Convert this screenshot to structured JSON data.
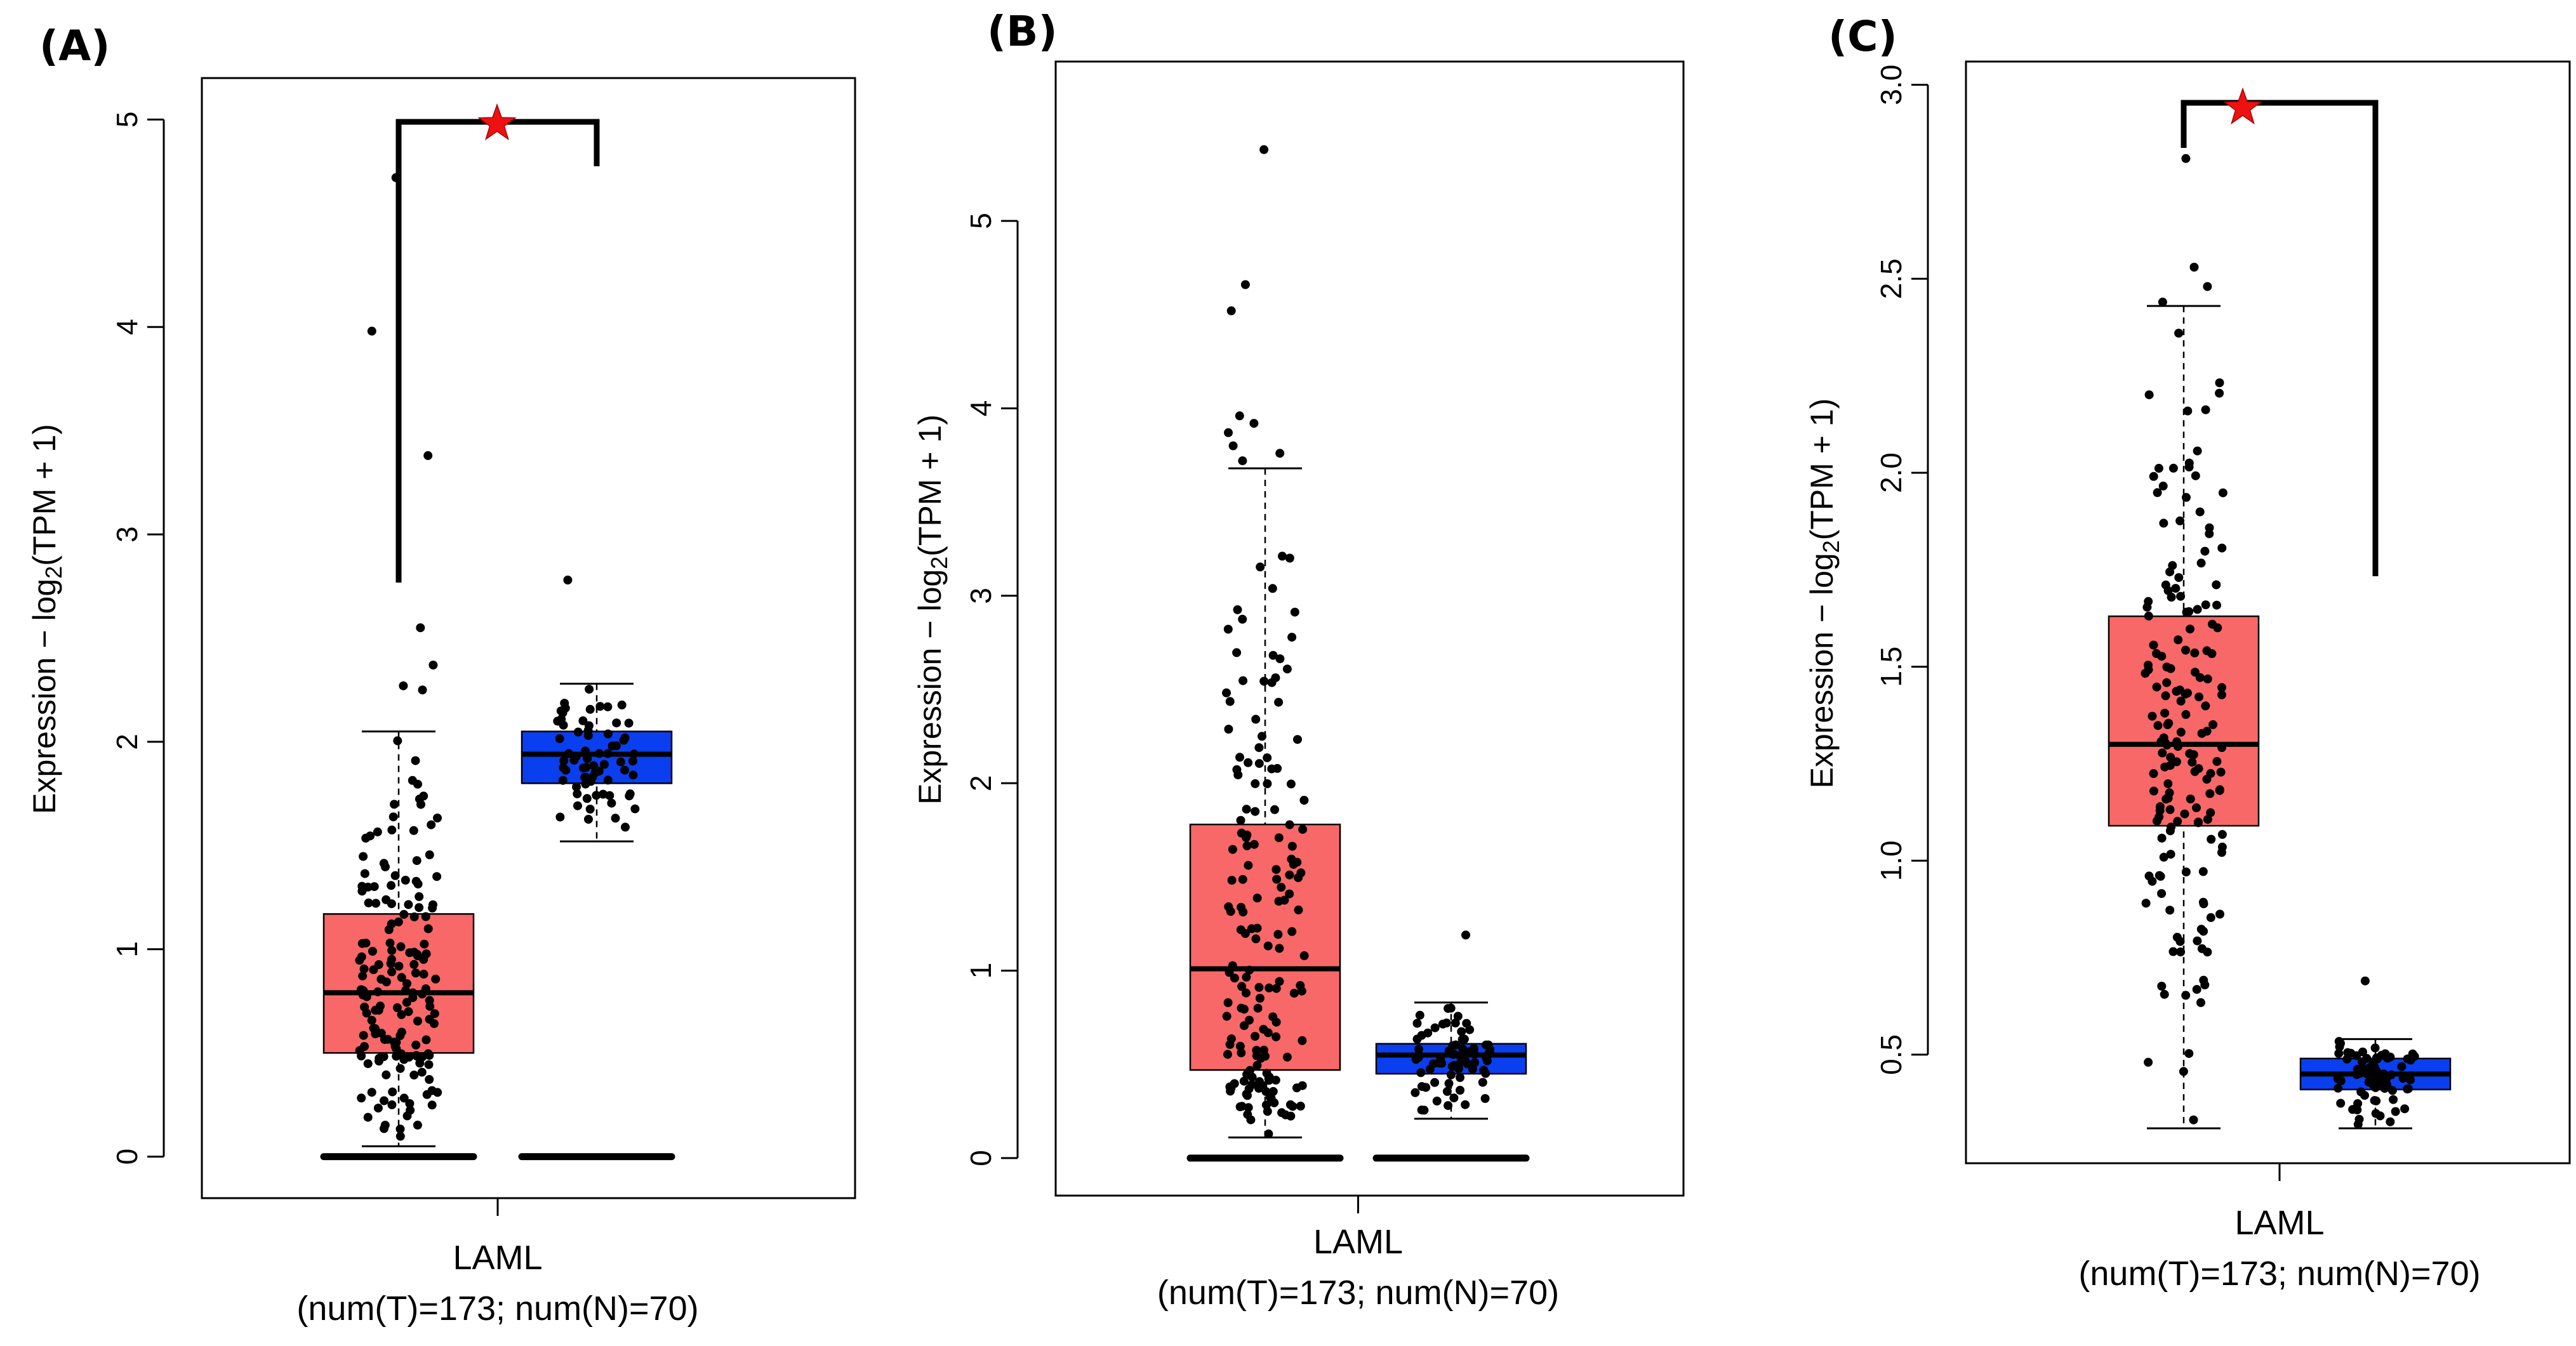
{
  "chart_data": [
    {
      "type": "box",
      "panel_label": "(A)",
      "ylabel": "Expression − log2(TPM + 1)",
      "category": "LAML",
      "category_sub": "(num(T)=173; num(N)=70)",
      "yticks": [
        0,
        1,
        2,
        3,
        4,
        5
      ],
      "ylim": [
        -0.2,
        5.2
      ],
      "significance": "*",
      "groups": [
        {
          "name": "T",
          "color": "#f86868",
          "n": 173,
          "min": 0.05,
          "q1": 0.5,
          "median": 0.79,
          "q3": 1.17,
          "max": 2.05,
          "outliers": [
            2.25,
            2.27,
            2.37,
            2.55,
            3.38,
            3.98,
            4.72
          ]
        },
        {
          "name": "N",
          "color": "#0a3ff0",
          "n": 70,
          "min": 1.52,
          "q1": 1.8,
          "median": 1.94,
          "q3": 2.05,
          "max": 2.28,
          "outliers": [
            2.78
          ]
        }
      ]
    },
    {
      "type": "box",
      "panel_label": "(B)",
      "ylabel": "Expression − log2(TPM + 1)",
      "category": "LAML",
      "category_sub": "(num(T)=173; num(N)=70)",
      "yticks": [
        0,
        1,
        2,
        3,
        4,
        5
      ],
      "ylim": [
        -0.2,
        5.85
      ],
      "significance": "",
      "groups": [
        {
          "name": "T",
          "color": "#f86868",
          "n": 173,
          "min": 0.11,
          "q1": 0.47,
          "median": 1.01,
          "q3": 1.78,
          "max": 3.68,
          "outliers": [
            3.72,
            3.76,
            3.8,
            3.87,
            3.92,
            3.96,
            4.52,
            4.66,
            5.38
          ]
        },
        {
          "name": "N",
          "color": "#0a3ff0",
          "n": 70,
          "min": 0.21,
          "q1": 0.45,
          "median": 0.55,
          "q3": 0.61,
          "max": 0.83,
          "outliers": [
            1.19
          ]
        }
      ]
    },
    {
      "type": "box",
      "panel_label": "(C)",
      "ylabel": "Expression − log2(TPM + 1)",
      "category": "LAML",
      "category_sub": "(num(T)=173; num(N)=70)",
      "yticks": [
        0.5,
        1.0,
        1.5,
        2.0,
        2.5,
        3.0
      ],
      "ylim": [
        0.22,
        3.06
      ],
      "significance": "*",
      "groups": [
        {
          "name": "T",
          "color": "#f86868",
          "n": 173,
          "min": 0.31,
          "q1": 1.09,
          "median": 1.3,
          "q3": 1.63,
          "max": 2.43,
          "outliers": [
            2.44,
            2.48,
            2.53,
            2.81
          ]
        },
        {
          "name": "N",
          "color": "#0a3ff0",
          "n": 70,
          "min": 0.31,
          "q1": 0.41,
          "median": 0.45,
          "q3": 0.49,
          "max": 0.54,
          "outliers": [
            0.69
          ]
        }
      ]
    }
  ]
}
